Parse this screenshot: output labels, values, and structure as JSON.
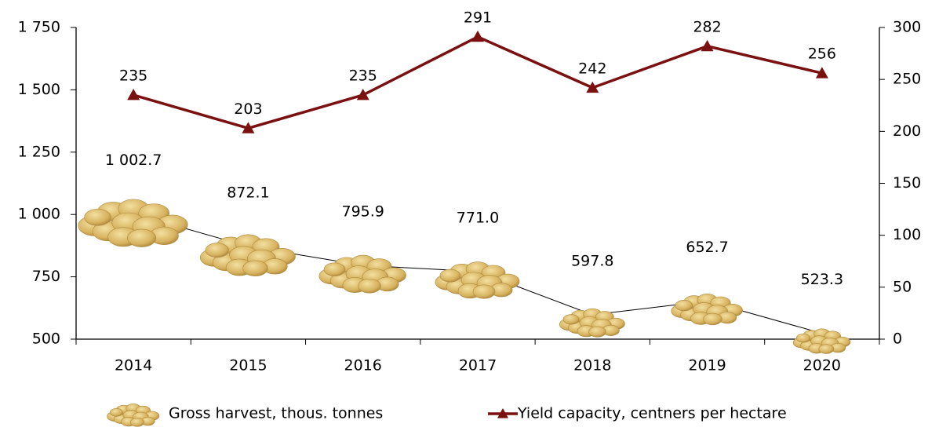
{
  "chart_data": {
    "type": "line",
    "categories": [
      "2014",
      "2015",
      "2016",
      "2017",
      "2018",
      "2019",
      "2020"
    ],
    "series": [
      {
        "name": "Gross harvest, thous. tonnes",
        "color": "#d6b25e",
        "line_color": "#000000",
        "marker": "potato",
        "values": [
          1002.7,
          872.1,
          795.9,
          771.0,
          597.8,
          652.7,
          523.3
        ],
        "value_labels": [
          "1 002.7",
          "872.1",
          "795.9",
          "771.0",
          "597.8",
          "652.7",
          "523.3"
        ]
      },
      {
        "name": "Yield capacity, centners per hectare",
        "color": "#7b1010",
        "marker": "triangle",
        "axis": "y2",
        "values": [
          235,
          203,
          235,
          291,
          242,
          282,
          256
        ]
      }
    ],
    "ylim": [
      500,
      1750
    ],
    "yticks": [
      500,
      750,
      {
        "value": 1000,
        "label": "1 000"
      },
      {
        "value": 1250,
        "label": "1 250"
      },
      {
        "value": 1500,
        "label": "1 500"
      },
      {
        "value": 1750,
        "label": "1 750"
      }
    ],
    "y2lim": [
      0,
      300
    ],
    "y2ticks": [
      0,
      50,
      100,
      150,
      200,
      250,
      300
    ],
    "legend": "bottom"
  }
}
